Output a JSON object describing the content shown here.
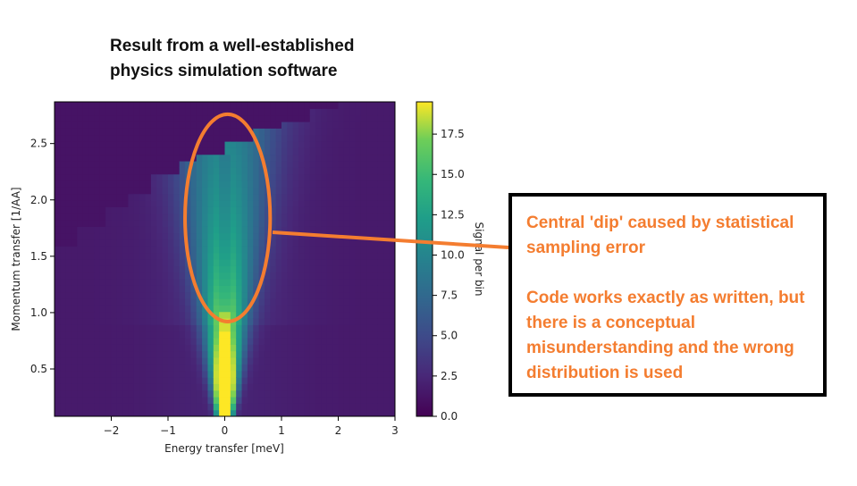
{
  "title_lines": [
    "Result from a well-established",
    "physics simulation software"
  ],
  "note": {
    "line1": "Central 'dip' caused by statistical sampling error",
    "line2": "Code works exactly as written, but there is a conceptual misunderstanding and the wrong distribution is used"
  },
  "highlight_color": "#f47d30",
  "chart_data": {
    "type": "heatmap",
    "title": "",
    "xlabel": "Energy transfer [meV]",
    "ylabel": "Momentum transfer [1/AA]",
    "colorbar_label": "Signal per bin",
    "colormap": "viridis",
    "xlim": [
      -3,
      3
    ],
    "ylim": [
      0.08,
      2.87
    ],
    "clim": [
      0,
      19.5
    ],
    "x_ticks": [
      -2,
      -1,
      0,
      1,
      2,
      3
    ],
    "x_tick_labels": [
      "−2",
      "−1",
      "0",
      "1",
      "2",
      "3"
    ],
    "y_ticks": [
      0.5,
      1.0,
      1.5,
      2.0,
      2.5
    ],
    "y_tick_labels": [
      "0.5",
      "1.0",
      "1.5",
      "2.0",
      "2.5"
    ],
    "colorbar_ticks": [
      0,
      2.5,
      5,
      7.5,
      10,
      12.5,
      15,
      17.5
    ],
    "colorbar_tick_labels": [
      "0.0",
      "2.5",
      "5.0",
      "7.5",
      "10.0",
      "12.5",
      "15.0",
      "17.5"
    ],
    "coverage_boundary": [
      {
        "x": -3.0,
        "q_max": 1.6
      },
      {
        "x": -2.6,
        "q_max": 1.75
      },
      {
        "x": -2.1,
        "q_max": 1.93
      },
      {
        "x": -1.7,
        "q_max": 2.08
      },
      {
        "x": -1.3,
        "q_max": 2.22
      },
      {
        "x": -0.8,
        "q_max": 2.35
      },
      {
        "x": -0.5,
        "q_max": 2.42
      },
      {
        "x": 0.0,
        "q_max": 2.5
      },
      {
        "x": 0.5,
        "q_max": 2.62
      },
      {
        "x": 1.0,
        "q_max": 2.72
      },
      {
        "x": 1.5,
        "q_max": 2.8
      },
      {
        "x": 2.0,
        "q_max": 2.87
      },
      {
        "x": 3.0,
        "q_max": 2.87
      }
    ],
    "annotation": {
      "shape": "ellipse",
      "center": [
        0.05,
        1.84
      ],
      "half_width": 0.75,
      "half_height": 0.92
    }
  }
}
